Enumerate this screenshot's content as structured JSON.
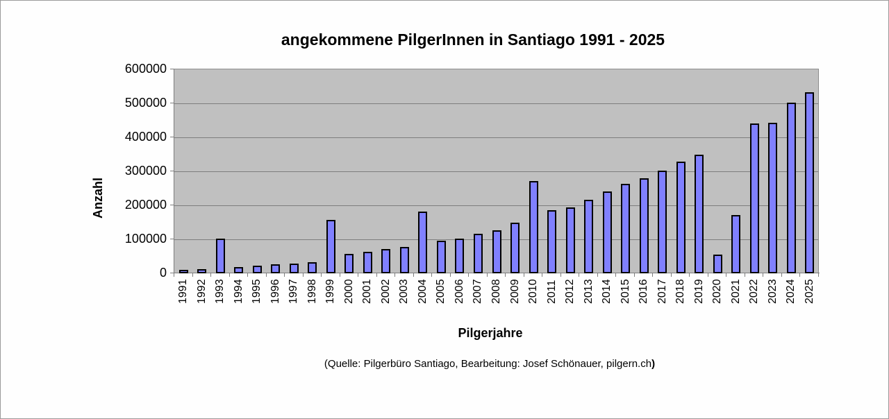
{
  "chart_data": {
    "type": "bar",
    "title": "angekommene PilgerInnen in Santiago 1991 - 2025",
    "xlabel": "Pilgerjahre",
    "ylabel": "Anzahl",
    "ylim": [
      0,
      600000
    ],
    "yticks": [
      "0",
      "100000",
      "200000",
      "300000",
      "400000",
      "500000",
      "600000"
    ],
    "grid": true,
    "legend": "none",
    "categories": [
      "1991",
      "1992",
      "1993",
      "1994",
      "1995",
      "1996",
      "1997",
      "1998",
      "1999",
      "2000",
      "2001",
      "2002",
      "2003",
      "2004",
      "2005",
      "2006",
      "2007",
      "2008",
      "2009",
      "2010",
      "2011",
      "2012",
      "2013",
      "2014",
      "2015",
      "2016",
      "2017",
      "2018",
      "2019",
      "2020",
      "2021",
      "2022",
      "2023",
      "2024",
      "2025"
    ],
    "values": [
      8000,
      10000,
      100000,
      16000,
      21000,
      24000,
      27000,
      31000,
      155000,
      55000,
      62000,
      69000,
      75000,
      180000,
      94000,
      101000,
      114000,
      125000,
      146000,
      270000,
      184000,
      192000,
      215000,
      238000,
      262000,
      278000,
      301000,
      327000,
      347000,
      54000,
      170000,
      438000,
      441000,
      499000,
      531000
    ],
    "annotation": "(Quelle: Pilgerbüro Santiago, Bearbeitung: Josef Schönauer, pilgern.ch)",
    "colors": {
      "bar_fill": "#8080ff",
      "bar_edge": "#000000",
      "plot_background": "#c0c0c0",
      "gridline": "#7d7d7d"
    }
  },
  "source": {
    "text": "(Quelle: Pilgerbüro Santiago, Bearbeitung: Josef Schönauer, pilgern.ch",
    "closing": ")"
  }
}
